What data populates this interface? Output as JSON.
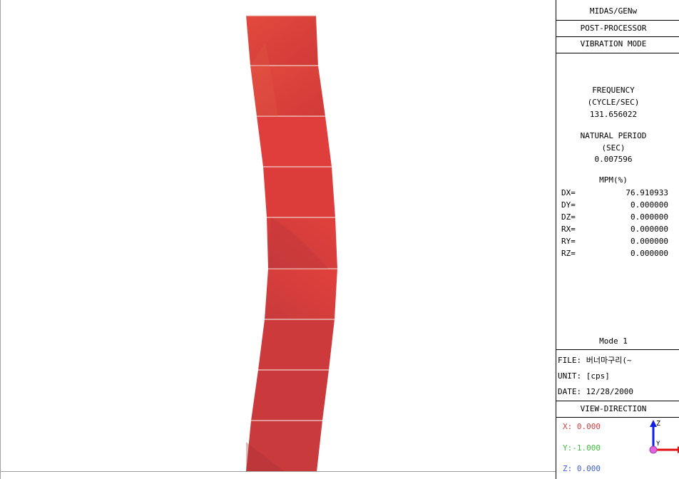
{
  "panel": {
    "program": "MIDAS/GENw",
    "post_processor": "POST-PROCESSOR",
    "result_type": "VIBRATION MODE",
    "frequency_label": "FREQUENCY",
    "frequency_unit": "(CYCLE/SEC)",
    "frequency_value": "131.656022",
    "period_label": "NATURAL PERIOD",
    "period_unit": "(SEC)",
    "period_value": "0.007596",
    "mpm_label": "MPM(%)",
    "mpm": [
      {
        "label": "DX=",
        "value": "76.910933"
      },
      {
        "label": "DY=",
        "value": "0.000000"
      },
      {
        "label": "DZ=",
        "value": "0.000000"
      },
      {
        "label": "RX=",
        "value": "0.000000"
      },
      {
        "label": "RY=",
        "value": "0.000000"
      },
      {
        "label": "RZ=",
        "value": "0.000000"
      }
    ],
    "mode": "Mode 1",
    "file": "FILE: 버너마구리(~",
    "unit": "UNIT: [cps]",
    "date": "DATE: 12/28/2000",
    "view_direction_label": "VIEW-DIRECTION",
    "x_dir": "X: 0.000",
    "y_dir": "Y:-1.000",
    "z_dir": "Z: 0.000",
    "axis_z_label": "Z",
    "axis_y_label": "Y",
    "colors": {
      "x": "#d04040",
      "y": "#40c040",
      "z": "#4060d0",
      "mesh": "#e04038"
    }
  }
}
